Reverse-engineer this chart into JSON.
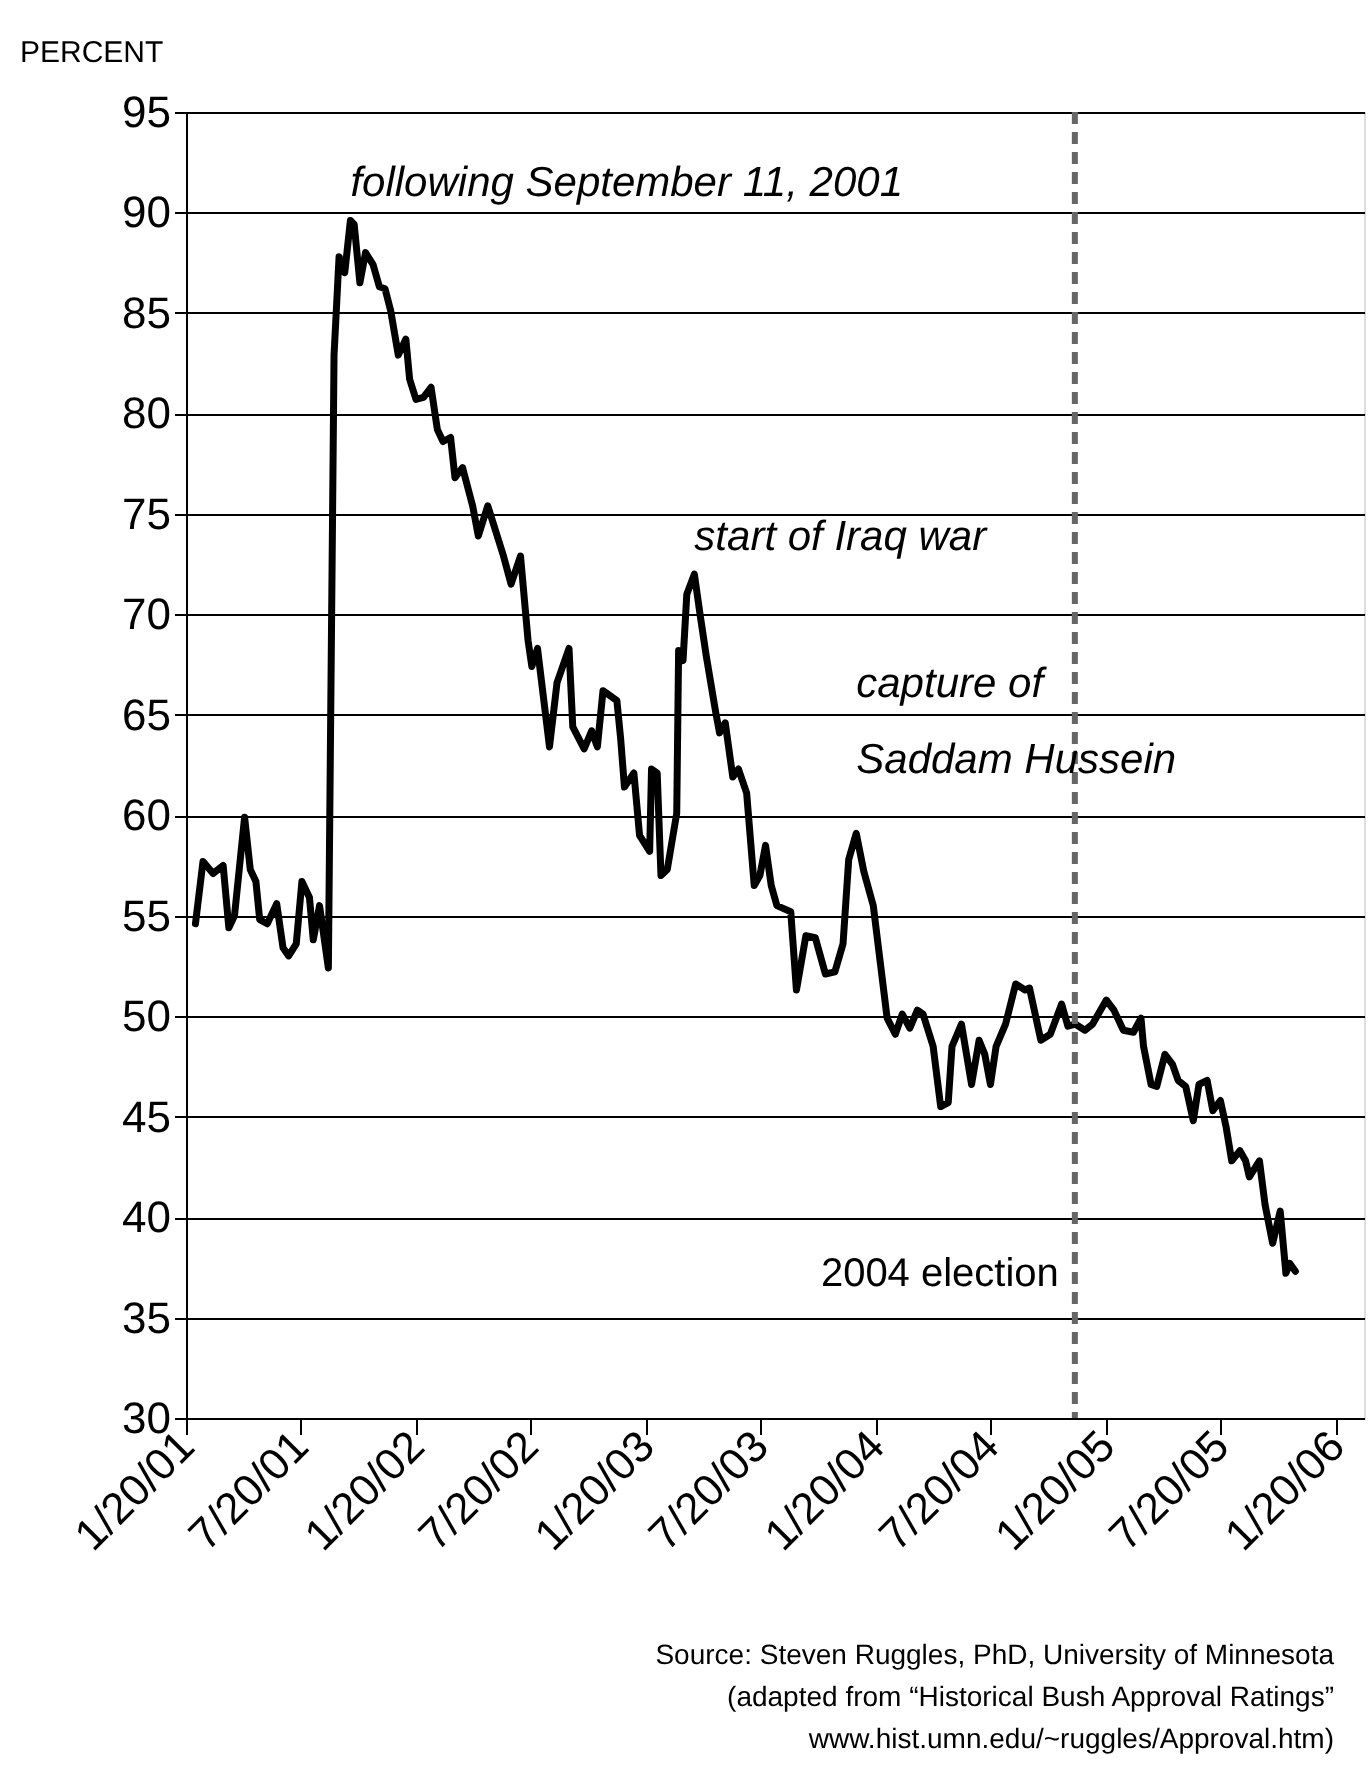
{
  "chart_data": {
    "type": "line",
    "ylabel": "PERCENT",
    "x": [
      "2001-02-04",
      "2001-02-16",
      "2001-03-04",
      "2001-03-20",
      "2001-03-29",
      "2001-04-07",
      "2001-04-23",
      "2001-05-02",
      "2001-05-11",
      "2001-05-17",
      "2001-05-29",
      "2001-06-13",
      "2001-06-23",
      "2001-07-02",
      "2001-07-14",
      "2001-07-23",
      "2001-08-04",
      "2001-08-10",
      "2001-08-20",
      "2001-09-03",
      "2001-09-12",
      "2001-09-20",
      "2001-09-29",
      "2001-10-08",
      "2001-10-14",
      "2001-10-23",
      "2001-11-01",
      "2001-11-13",
      "2001-11-23",
      "2001-12-02",
      "2001-12-11",
      "2001-12-23",
      "2002-01-04",
      "2002-01-10",
      "2002-01-20",
      "2002-02-01",
      "2002-02-13",
      "2002-02-23",
      "2002-03-04",
      "2002-03-16",
      "2002-03-23",
      "2002-04-04",
      "2002-04-20",
      "2002-04-29",
      "2002-05-14",
      "2002-06-08",
      "2002-06-20",
      "2002-07-05",
      "2002-07-17",
      "2002-07-23",
      "2002-08-01",
      "2002-08-20",
      "2002-09-01",
      "2002-09-20",
      "2002-09-26",
      "2002-10-14",
      "2002-10-26",
      "2002-11-04",
      "2002-11-13",
      "2002-12-05",
      "2002-12-11",
      "2002-12-17",
      "2003-01-01",
      "2003-01-10",
      "2003-01-26",
      "2003-01-29",
      "2003-02-07",
      "2003-02-13",
      "2003-02-23",
      "2003-03-10",
      "2003-03-13",
      "2003-03-20",
      "2003-03-26",
      "2003-04-07",
      "2003-04-16",
      "2003-04-26",
      "2003-05-11",
      "2003-05-17",
      "2003-05-26",
      "2003-06-07",
      "2003-06-16",
      "2003-06-29",
      "2003-07-11",
      "2003-07-20",
      "2003-07-29",
      "2003-08-07",
      "2003-08-16",
      "2003-09-07",
      "2003-09-16",
      "2003-10-01",
      "2003-10-16",
      "2003-11-01",
      "2003-11-16",
      "2003-11-29",
      "2003-12-08",
      "2003-12-20",
      "2004-01-01",
      "2004-01-16",
      "2004-02-07",
      "2004-02-20",
      "2004-03-02",
      "2004-03-14",
      "2004-03-26",
      "2004-04-04",
      "2004-04-20",
      "2004-05-02",
      "2004-05-14",
      "2004-05-20",
      "2004-06-04",
      "2004-06-20",
      "2004-07-02",
      "2004-07-11",
      "2004-07-20",
      "2004-07-29",
      "2004-08-13",
      "2004-08-29",
      "2004-09-13",
      "2004-09-20",
      "2004-10-08",
      "2004-10-23",
      "2004-11-10",
      "2004-11-20",
      "2004-12-02",
      "2004-12-17",
      "2004-12-29",
      "2005-01-20",
      "2005-02-01",
      "2005-02-16",
      "2005-03-04",
      "2005-03-16",
      "2005-03-20",
      "2005-04-01",
      "2005-04-10",
      "2005-04-23",
      "2005-05-05",
      "2005-05-14",
      "2005-05-26",
      "2005-06-07",
      "2005-06-16",
      "2005-06-29",
      "2005-07-08",
      "2005-07-20",
      "2005-07-29",
      "2005-08-07",
      "2005-08-20",
      "2005-08-29",
      "2005-09-04",
      "2005-09-20",
      "2005-09-29",
      "2005-10-11",
      "2005-10-23",
      "2005-11-01",
      "2005-11-07",
      "2005-11-16"
    ],
    "series": [
      {
        "color": "#000000",
        "values": [
          54.6,
          57.7,
          57.1,
          57.5,
          54.4,
          55.0,
          59.9,
          57.3,
          56.7,
          54.8,
          54.6,
          55.6,
          53.4,
          53.0,
          53.6,
          56.7,
          55.9,
          53.8,
          55.5,
          52.4,
          82.9,
          87.8,
          87.0,
          89.6,
          89.4,
          86.5,
          88.0,
          87.4,
          86.3,
          86.2,
          85.1,
          82.9,
          83.7,
          81.7,
          80.7,
          80.8,
          81.3,
          79.2,
          78.6,
          78.8,
          76.8,
          77.3,
          75.4,
          73.9,
          75.4,
          72.9,
          71.5,
          72.9,
          68.7,
          67.4,
          68.3,
          63.4,
          66.6,
          68.3,
          64.4,
          63.3,
          64.2,
          63.4,
          66.2,
          65.7,
          63.8,
          61.4,
          62.1,
          59.0,
          58.2,
          62.3,
          62.1,
          57.0,
          57.3,
          60.1,
          68.2,
          67.7,
          71.0,
          72.0,
          70.0,
          67.9,
          65.1,
          64.1,
          64.6,
          61.9,
          62.3,
          61.1,
          56.5,
          57.0,
          58.5,
          56.5,
          55.5,
          55.2,
          51.3,
          54.0,
          53.9,
          52.1,
          52.2,
          53.6,
          57.8,
          59.1,
          57.2,
          55.5,
          49.9,
          49.1,
          50.1,
          49.4,
          50.3,
          50.1,
          48.5,
          45.5,
          45.7,
          48.5,
          49.6,
          46.6,
          48.8,
          48.1,
          46.6,
          48.5,
          49.6,
          51.6,
          51.3,
          51.4,
          48.8,
          49.1,
          50.6,
          49.5,
          49.6,
          49.3,
          49.6,
          50.8,
          50.3,
          49.3,
          49.2,
          49.9,
          48.5,
          46.6,
          46.5,
          48.1,
          47.6,
          46.8,
          46.5,
          44.8,
          46.6,
          46.8,
          45.3,
          45.8,
          44.5,
          42.8,
          43.3,
          42.8,
          42.0,
          42.8,
          40.6,
          38.7,
          40.3,
          37.2,
          37.7,
          37.3
        ]
      }
    ],
    "xlim": [
      "2001-01-20",
      "2006-03-05"
    ],
    "xticks": [
      {
        "value": "2001-01-20",
        "label": "1/20/01"
      },
      {
        "value": "2001-07-20",
        "label": "7/20/01"
      },
      {
        "value": "2002-01-20",
        "label": "1/20/02"
      },
      {
        "value": "2002-07-20",
        "label": "7/20/02"
      },
      {
        "value": "2003-01-20",
        "label": "1/20/03"
      },
      {
        "value": "2003-07-20",
        "label": "7/20/03"
      },
      {
        "value": "2004-01-20",
        "label": "1/20/04"
      },
      {
        "value": "2004-07-20",
        "label": "7/20/04"
      },
      {
        "value": "2005-01-20",
        "label": "1/20/05"
      },
      {
        "value": "2005-07-20",
        "label": "7/20/05"
      },
      {
        "value": "2006-01-20",
        "label": "1/20/06"
      }
    ],
    "ylim": [
      30,
      95
    ],
    "yticks": [
      30,
      35,
      40,
      45,
      50,
      55,
      60,
      65,
      70,
      75,
      80,
      85,
      90,
      95
    ],
    "grid": "y",
    "marker": "none",
    "line_style": "solid",
    "ref_lines": [
      {
        "axis": "x",
        "value": "2004-12-01",
        "label": "2004 election",
        "color": "#666666",
        "line_style": "dashed"
      }
    ],
    "annotations": [
      {
        "text": "following September 11, 2001",
        "x": "2001-10-08",
        "y": 89.6
      },
      {
        "text": "start of Iraq war",
        "x": "2003-04-07",
        "y": 72.0
      },
      {
        "text": "capture of\nSaddam Hussein",
        "x": "2003-12-20",
        "y": 59.1
      },
      "Source: Steven Ruggles, PhD, University of Minnesota\n(adapted from “Historical Bush Approval Ratings”\nwww.hist.umn.edu/~ruggles/Approval.htm)"
    ]
  }
}
